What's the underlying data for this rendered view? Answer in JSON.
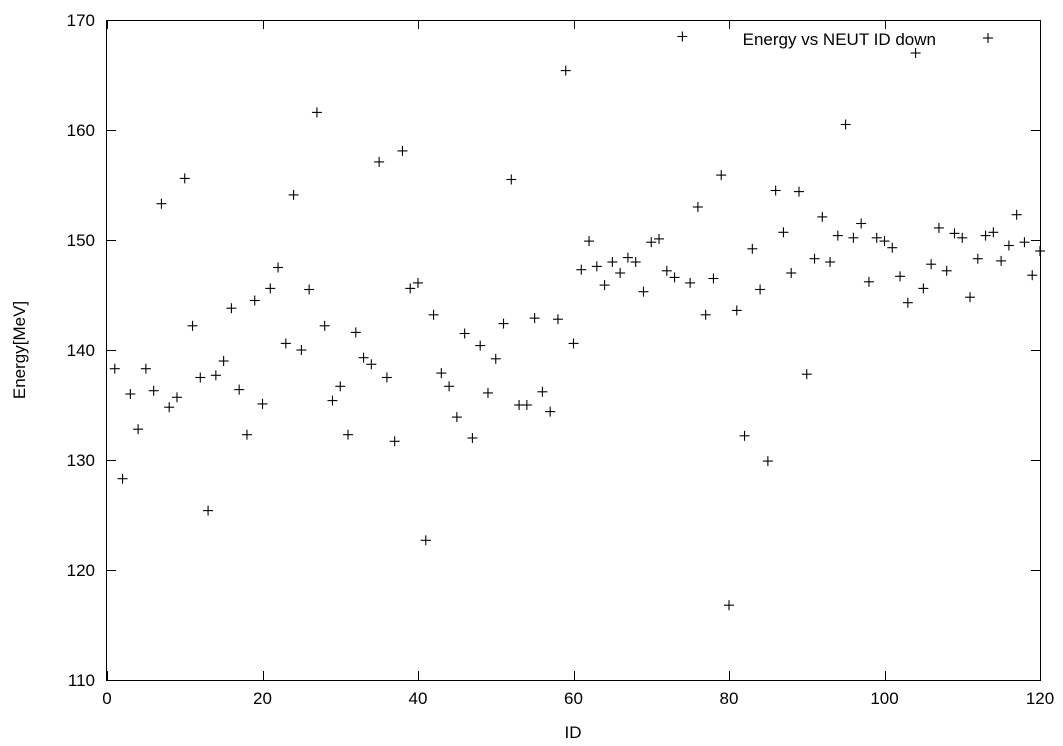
{
  "chart_data": {
    "type": "scatter",
    "title": "",
    "xlabel": "ID",
    "ylabel": "Energy[MeV]",
    "xlim": [
      0,
      120
    ],
    "ylim": [
      110,
      170
    ],
    "xticks": [
      0,
      20,
      40,
      60,
      80,
      100,
      120
    ],
    "yticks": [
      110,
      120,
      130,
      140,
      150,
      160,
      170
    ],
    "grid": false,
    "legend_position": "top-right",
    "marker": "plus",
    "series": [
      {
        "name": "Energy vs NEUT ID down",
        "x": [
          1,
          2,
          3,
          4,
          5,
          6,
          7,
          8,
          9,
          10,
          11,
          12,
          13,
          14,
          15,
          16,
          17,
          18,
          19,
          20,
          21,
          22,
          23,
          24,
          25,
          26,
          27,
          28,
          29,
          30,
          31,
          32,
          33,
          34,
          35,
          36,
          37,
          38,
          39,
          40,
          41,
          42,
          43,
          44,
          45,
          46,
          47,
          48,
          49,
          50,
          51,
          52,
          53,
          54,
          55,
          56,
          57,
          58,
          59,
          60,
          61,
          62,
          63,
          64,
          65,
          66,
          67,
          68,
          69,
          70,
          71,
          72,
          73,
          74,
          75,
          76,
          77,
          78,
          79,
          80,
          81,
          82,
          83,
          84,
          85,
          86,
          87,
          88,
          89,
          90,
          91,
          92,
          93,
          94,
          95,
          96,
          97,
          98,
          99,
          100,
          101,
          102,
          103,
          104,
          105,
          106,
          107,
          108,
          109,
          110,
          111,
          112,
          113,
          114,
          115,
          116,
          117,
          118,
          119,
          120
        ],
        "y": [
          138.3,
          128.3,
          136.0,
          132.8,
          138.3,
          136.3,
          153.3,
          134.8,
          135.7,
          155.6,
          142.2,
          137.5,
          125.4,
          137.7,
          139.0,
          143.8,
          136.4,
          132.3,
          144.5,
          135.1,
          145.6,
          147.5,
          140.6,
          154.1,
          140.0,
          145.5,
          161.6,
          142.2,
          135.4,
          136.7,
          132.3,
          141.6,
          139.3,
          138.7,
          157.1,
          137.5,
          131.7,
          158.1,
          145.6,
          146.1,
          122.7,
          143.2,
          137.9,
          136.7,
          133.9,
          141.5,
          132.0,
          140.4,
          136.1,
          139.2,
          142.4,
          155.5,
          135.0,
          135.0,
          142.9,
          136.2,
          134.4,
          142.8,
          165.4,
          140.6,
          147.3,
          149.9,
          147.6,
          145.9,
          148.0,
          147.0,
          148.4,
          148.0,
          145.3,
          149.8,
          150.1,
          147.2,
          146.6,
          168.5,
          146.1,
          153.0,
          143.2,
          146.5,
          155.9,
          116.8,
          143.6,
          132.2,
          149.2,
          145.5,
          129.9,
          154.5,
          150.7,
          147.0,
          154.4,
          137.8,
          148.3,
          152.1,
          148.0,
          150.4,
          160.5,
          150.2,
          151.5,
          146.2,
          150.2,
          149.9,
          149.3,
          146.7,
          144.3,
          167.0,
          145.6,
          147.8,
          151.1,
          147.2,
          150.6,
          150.2,
          144.8,
          148.3,
          150.4,
          150.7,
          148.1,
          149.5,
          152.3,
          149.8,
          146.8,
          149.0
        ]
      }
    ]
  }
}
